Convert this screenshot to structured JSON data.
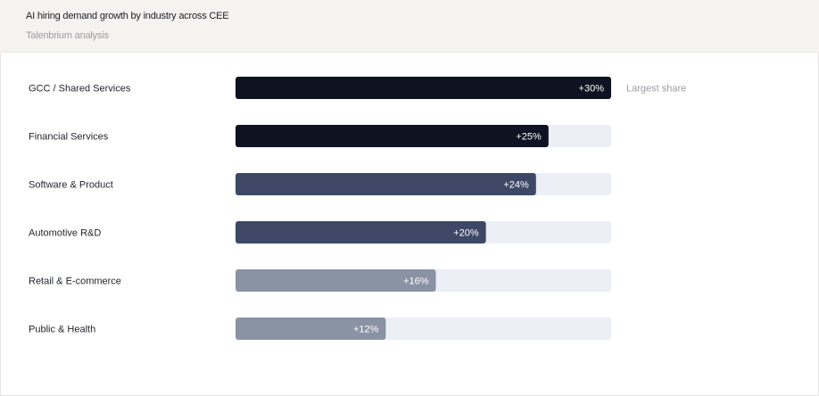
{
  "header": {
    "title": "AI hiring demand growth by industry across CEE",
    "subtitle": "Talenbrium analysis"
  },
  "colors": {
    "header_bg": "#f4f3ef",
    "track": "#edeff6",
    "dark": "#0e1221",
    "mid": "#3e4866",
    "light": "#8a93a3"
  },
  "chart_data": {
    "type": "bar",
    "orientation": "horizontal",
    "title": "AI hiring demand growth by industry across CEE",
    "subtitle": "Talenbrium analysis",
    "categories": [
      "GCC / Shared Services",
      "Financial Services",
      "Software & Product",
      "Automotive R&D",
      "Retail & E-commerce",
      "Public & Health"
    ],
    "values": [
      30,
      25,
      24,
      20,
      16,
      12
    ],
    "value_labels": [
      "+30%",
      "+25%",
      "+24%",
      "+20%",
      "+16%",
      "+12%"
    ],
    "xlim": [
      0,
      30
    ],
    "tiers": [
      "dark",
      "dark",
      "mid",
      "mid",
      "light",
      "light"
    ],
    "annotations": [
      {
        "category_index": 0,
        "text": "Largest share"
      }
    ],
    "grid": false,
    "legend": "none"
  }
}
